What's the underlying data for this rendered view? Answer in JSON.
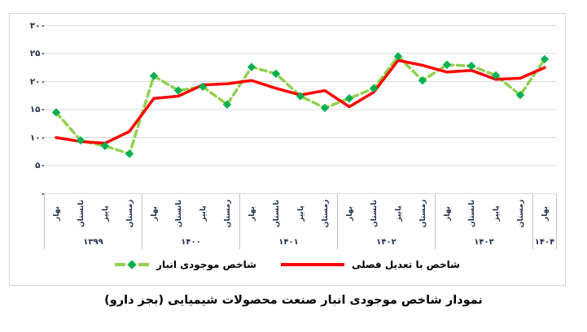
{
  "figure": {
    "caption": "نمودار شاخص موجودی انبار صنعت محصولات شیمیایی (بجز دارو)"
  },
  "legend": {
    "seasonal": {
      "label": "شاخص با تعدیل فصلی",
      "color": "#ff0000",
      "style": "solid-line"
    },
    "inventory": {
      "label": "شاخص موجودی انبار",
      "line_color": "#92d050",
      "marker_color": "#00b050",
      "style": "dashed-line-diamond-marker"
    }
  },
  "colors": {
    "grid": "#d9d9d9",
    "table_border": "#bfbfbf",
    "axis_text": "#24344d",
    "figure_border": "#d6d6d6"
  },
  "chart_data": {
    "type": "line",
    "title": "نمودار شاخص موجودی انبار صنعت محصولات شیمیایی (بجز دارو)",
    "x": [
      "بهار ۱۳۹۹",
      "تابستان ۱۳۹۹",
      "پاییز ۱۳۹۹",
      "زمستان ۱۳۹۹",
      "بهار ۱۴۰۰",
      "تابستان ۱۴۰۰",
      "پاییز ۱۴۰۰",
      "زمستان ۱۴۰۰",
      "بهار ۱۴۰۱",
      "تابستان ۱۴۰۱",
      "پاییز ۱۴۰۱",
      "زمستان ۱۴۰۱",
      "بهار ۱۴۰۲",
      "تابستان ۱۴۰۲",
      "پاییز ۱۴۰۲",
      "زمستان ۱۴۰۲",
      "بهار ۱۴۰۳",
      "تابستان ۱۴۰۳",
      "پاییز ۱۴۰۳",
      "زمستان ۱۴۰۳",
      "بهار ۱۴۰۴"
    ],
    "season_cycle": [
      "بهار",
      "تابستان",
      "پاییز",
      "زمستان"
    ],
    "year_groups": [
      {
        "year": "۱۳۹۹",
        "count": 4
      },
      {
        "year": "۱۴۰۰",
        "count": 4
      },
      {
        "year": "۱۴۰۱",
        "count": 4
      },
      {
        "year": "۱۴۰۲",
        "count": 4
      },
      {
        "year": "۱۴۰۳",
        "count": 4
      },
      {
        "year": "۱۴۰۴",
        "count": 1
      }
    ],
    "series": [
      {
        "name": "شاخص موجودی انبار",
        "values": [
          145,
          95,
          85,
          71,
          210,
          184,
          191,
          159,
          226,
          214,
          174,
          153,
          170,
          188,
          245,
          202,
          230,
          228,
          211,
          176,
          240
        ],
        "color": "#92d050",
        "line_style": "dashed",
        "marker": "diamond",
        "marker_color": "#00b050"
      },
      {
        "name": "شاخص با تعدیل فصلی",
        "values": [
          100,
          93,
          90,
          111,
          170,
          174,
          194,
          196,
          202,
          188,
          176,
          184,
          155,
          181,
          238,
          229,
          217,
          220,
          204,
          206,
          225
        ],
        "color": "#ff0000",
        "line_style": "solid",
        "marker": "none"
      }
    ],
    "ylim": [
      0,
      300
    ],
    "yticks": [
      {
        "label": "۳۰۰",
        "value": 300
      },
      {
        "label": "۲۵۰",
        "value": 250
      },
      {
        "label": "۲۰۰",
        "value": 200
      },
      {
        "label": "۱۵۰",
        "value": 150
      },
      {
        "label": "۱۰۰",
        "value": 100
      },
      {
        "label": "۵۰",
        "value": 50
      },
      {
        "label": "۰",
        "value": 0
      }
    ],
    "grid": true,
    "legend_position": "bottom"
  }
}
